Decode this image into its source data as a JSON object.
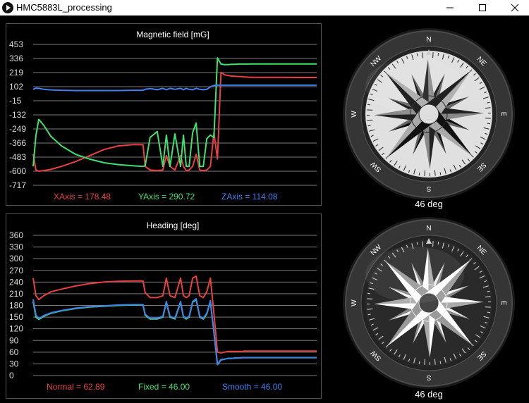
{
  "window": {
    "title": "HMC5883L_processing",
    "app_icon": "play-icon"
  },
  "magnetic": {
    "chart_data": {
      "type": "line",
      "title": "Magnetic field [mG]",
      "ylim": [
        -717,
        453
      ],
      "yticks": [
        "453",
        "336",
        "219",
        "102",
        "-15",
        "-132",
        "-249",
        "-366",
        "-483",
        "-600",
        "-717"
      ],
      "x": [
        0,
        4,
        8,
        15,
        25,
        40,
        60,
        80,
        100,
        120,
        140,
        155,
        158,
        165,
        175,
        183,
        188,
        193,
        200,
        208,
        212,
        216,
        220,
        225,
        230,
        235,
        240,
        245,
        250,
        255,
        260,
        265,
        270,
        275,
        280,
        285,
        290,
        295,
        298,
        300,
        303,
        308,
        315,
        330,
        350,
        380,
        400
      ],
      "series": [
        {
          "name": "XAxis",
          "color": "#e84040",
          "values": [
            -460,
            -590,
            -600,
            -595,
            -585,
            -560,
            -520,
            -470,
            -420,
            -390,
            -380,
            -380,
            -560,
            -590,
            -595,
            -590,
            -470,
            -560,
            -590,
            -470,
            -560,
            -595,
            -590,
            -560,
            -460,
            -590,
            -595,
            -590,
            -560,
            -280,
            -500,
            220,
            200,
            195,
            190,
            188,
            186,
            185,
            183,
            182,
            181,
            180,
            180,
            179,
            179,
            178,
            178
          ]
        },
        {
          "name": "YAxis",
          "color": "#40e070",
          "values": [
            -560,
            -300,
            -170,
            -220,
            -310,
            -390,
            -460,
            -500,
            -530,
            -545,
            -555,
            -560,
            -555,
            -320,
            -270,
            -560,
            -300,
            -560,
            -290,
            -560,
            -300,
            -560,
            -560,
            -280,
            -200,
            -560,
            -560,
            -330,
            -300,
            -320,
            340,
            290,
            285,
            285,
            288,
            288,
            290,
            290,
            290,
            290,
            290,
            291,
            291,
            291,
            291,
            291,
            291
          ]
        },
        {
          "name": "ZAxis",
          "color": "#4080f0",
          "values": [
            80,
            90,
            88,
            80,
            75,
            72,
            70,
            70,
            70,
            70,
            72,
            72,
            80,
            86,
            76,
            88,
            76,
            88,
            80,
            88,
            76,
            88,
            80,
            76,
            88,
            80,
            76,
            80,
            100,
            112,
            114,
            114,
            114,
            114,
            114,
            114,
            114,
            114,
            114,
            114,
            114,
            114,
            114,
            114,
            114,
            114,
            114
          ]
        }
      ]
    },
    "legend_text": [
      "XAxis = 178.48",
      "YAxis = 290.72",
      "ZAxis = 114.08"
    ]
  },
  "heading": {
    "chart_data": {
      "type": "line",
      "title": "Heading [deg]",
      "ylim": [
        0,
        360
      ],
      "yticks": [
        "360",
        "330",
        "300",
        "270",
        "240",
        "210",
        "180",
        "150",
        "120",
        "90",
        "60",
        "30",
        "0"
      ],
      "x": [
        0,
        4,
        8,
        15,
        25,
        40,
        60,
        80,
        100,
        120,
        140,
        155,
        158,
        165,
        175,
        183,
        188,
        193,
        200,
        208,
        212,
        216,
        220,
        225,
        230,
        235,
        240,
        245,
        250,
        255,
        260,
        265,
        270,
        275,
        280,
        285,
        290,
        295,
        298,
        300,
        303,
        308,
        315,
        330,
        350,
        380,
        400
      ],
      "series": [
        {
          "name": "Normal",
          "color": "#e84040",
          "values": [
            250,
            205,
            195,
            205,
            215,
            222,
            230,
            236,
            240,
            242,
            243,
            243,
            213,
            200,
            200,
            205,
            250,
            205,
            200,
            250,
            205,
            200,
            205,
            250,
            255,
            205,
            200,
            215,
            250,
            160,
            60,
            58,
            60,
            62,
            62,
            62,
            62,
            62,
            63,
            63,
            63,
            63,
            63,
            63,
            63,
            63,
            63
          ]
        },
        {
          "name": "Fixed",
          "color": "#40e070",
          "values": [
            190,
            150,
            144,
            152,
            160,
            166,
            172,
            176,
            178,
            180,
            181,
            181,
            155,
            145,
            145,
            150,
            188,
            150,
            145,
            188,
            150,
            145,
            150,
            188,
            195,
            150,
            145,
            158,
            190,
            110,
            28,
            40,
            42,
            44,
            44,
            45,
            45,
            46,
            46,
            46,
            46,
            46,
            46,
            46,
            46,
            46,
            46
          ]
        },
        {
          "name": "Smooth",
          "color": "#4080f0",
          "values": [
            196,
            155,
            146,
            154,
            161,
            167,
            173,
            177,
            179,
            181,
            182,
            182,
            157,
            147,
            147,
            152,
            190,
            152,
            147,
            190,
            152,
            147,
            152,
            190,
            197,
            152,
            147,
            160,
            192,
            112,
            29,
            41,
            42,
            44,
            44,
            45,
            45,
            46,
            46,
            46,
            46,
            46,
            46,
            46,
            46,
            46,
            46
          ]
        }
      ]
    },
    "legend_text": [
      "Normal = 62.89",
      "Fixed = 46.00",
      "Smooth = 46.00"
    ]
  },
  "compasses": {
    "top_degrees": "46 deg",
    "bottom_degrees": "46 deg",
    "heading_value": 46,
    "cardinals": [
      "N",
      "NE",
      "E",
      "SE",
      "S",
      "SW",
      "W",
      "NW"
    ]
  }
}
